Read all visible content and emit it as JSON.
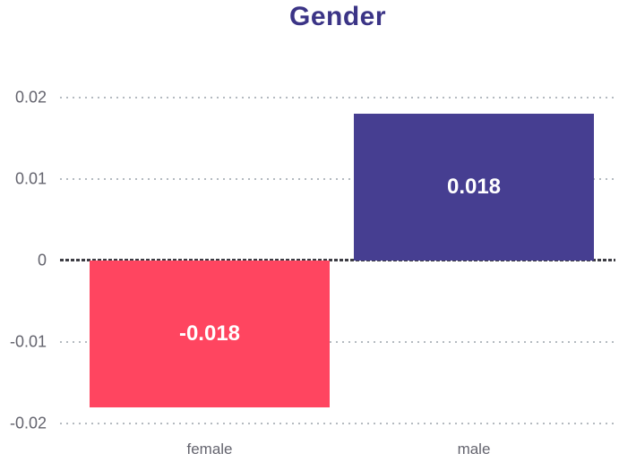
{
  "chart": {
    "title": "Gender",
    "title_color": "#3b3486",
    "background_color": "#ffffff",
    "axis_label_color": "#64646e",
    "gridline_color": "#b4bac0",
    "zero_line_color": "#3d3d44",
    "value_label_color": "#ffffff"
  },
  "chart_data": {
    "type": "bar",
    "title": "Gender",
    "categories": [
      "female",
      "male"
    ],
    "series": [
      {
        "name": "Gender",
        "values": [
          -0.018,
          0.018
        ]
      }
    ],
    "data_labels": [
      "-0.018",
      "0.018"
    ],
    "bar_colors": [
      "#ff4560",
      "#463e91"
    ],
    "ylim": [
      -0.02,
      0.02
    ],
    "yticks": [
      0.02,
      0.01,
      0,
      -0.01,
      -0.02
    ],
    "ytick_labels": [
      "0.02",
      "0.01",
      "0",
      "-0.01",
      "-0.02"
    ],
    "xlabel": "",
    "ylabel": "",
    "grid": "horizontal-dotted",
    "legend": "none",
    "zero_line": "dark-dashed"
  }
}
